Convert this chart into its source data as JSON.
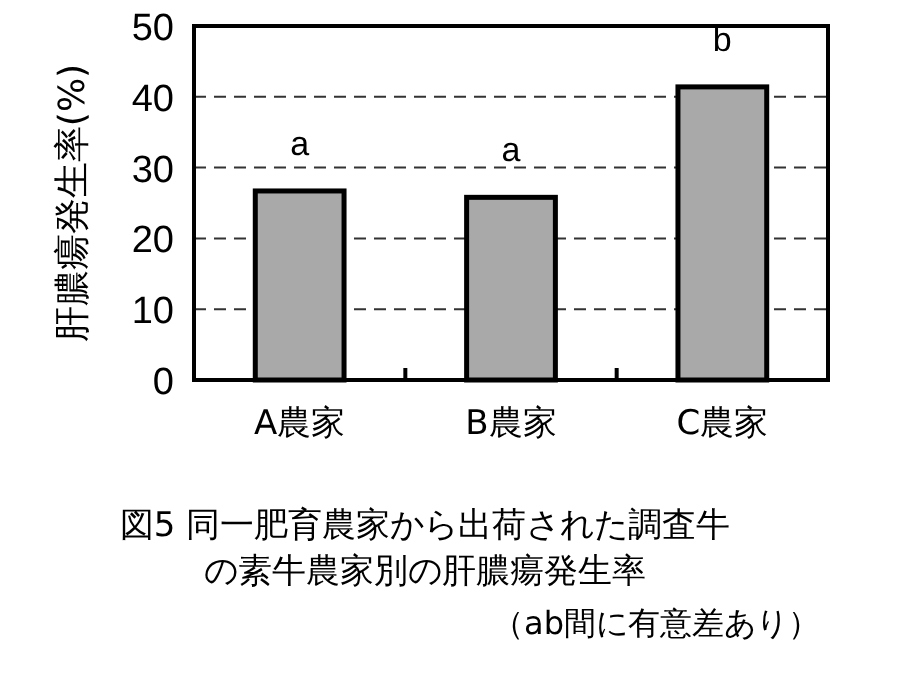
{
  "chart_data": {
    "type": "bar",
    "title": "図5 同一肥育農家から出荷された調査牛の素牛農家別の肝膿瘍発生率",
    "ylabel": "肝膿瘍発生率(%)",
    "categories": [
      "A農家",
      "B農家",
      "C農家"
    ],
    "values": [
      26.7,
      25.8,
      41.4
    ],
    "color": "#a9a9a9",
    "ylim": [
      0,
      50
    ],
    "yticks": [
      0,
      10,
      20,
      30,
      40,
      50
    ],
    "grid": "y",
    "annotations": [
      {
        "text": "a",
        "x": "A農家",
        "y": 26.7
      },
      {
        "text": "a",
        "x": "B農家",
        "y": 25.8
      },
      {
        "text": "b",
        "x": "C農家",
        "y": 41.4
      },
      "（ab間に有意差あり）"
    ]
  }
}
